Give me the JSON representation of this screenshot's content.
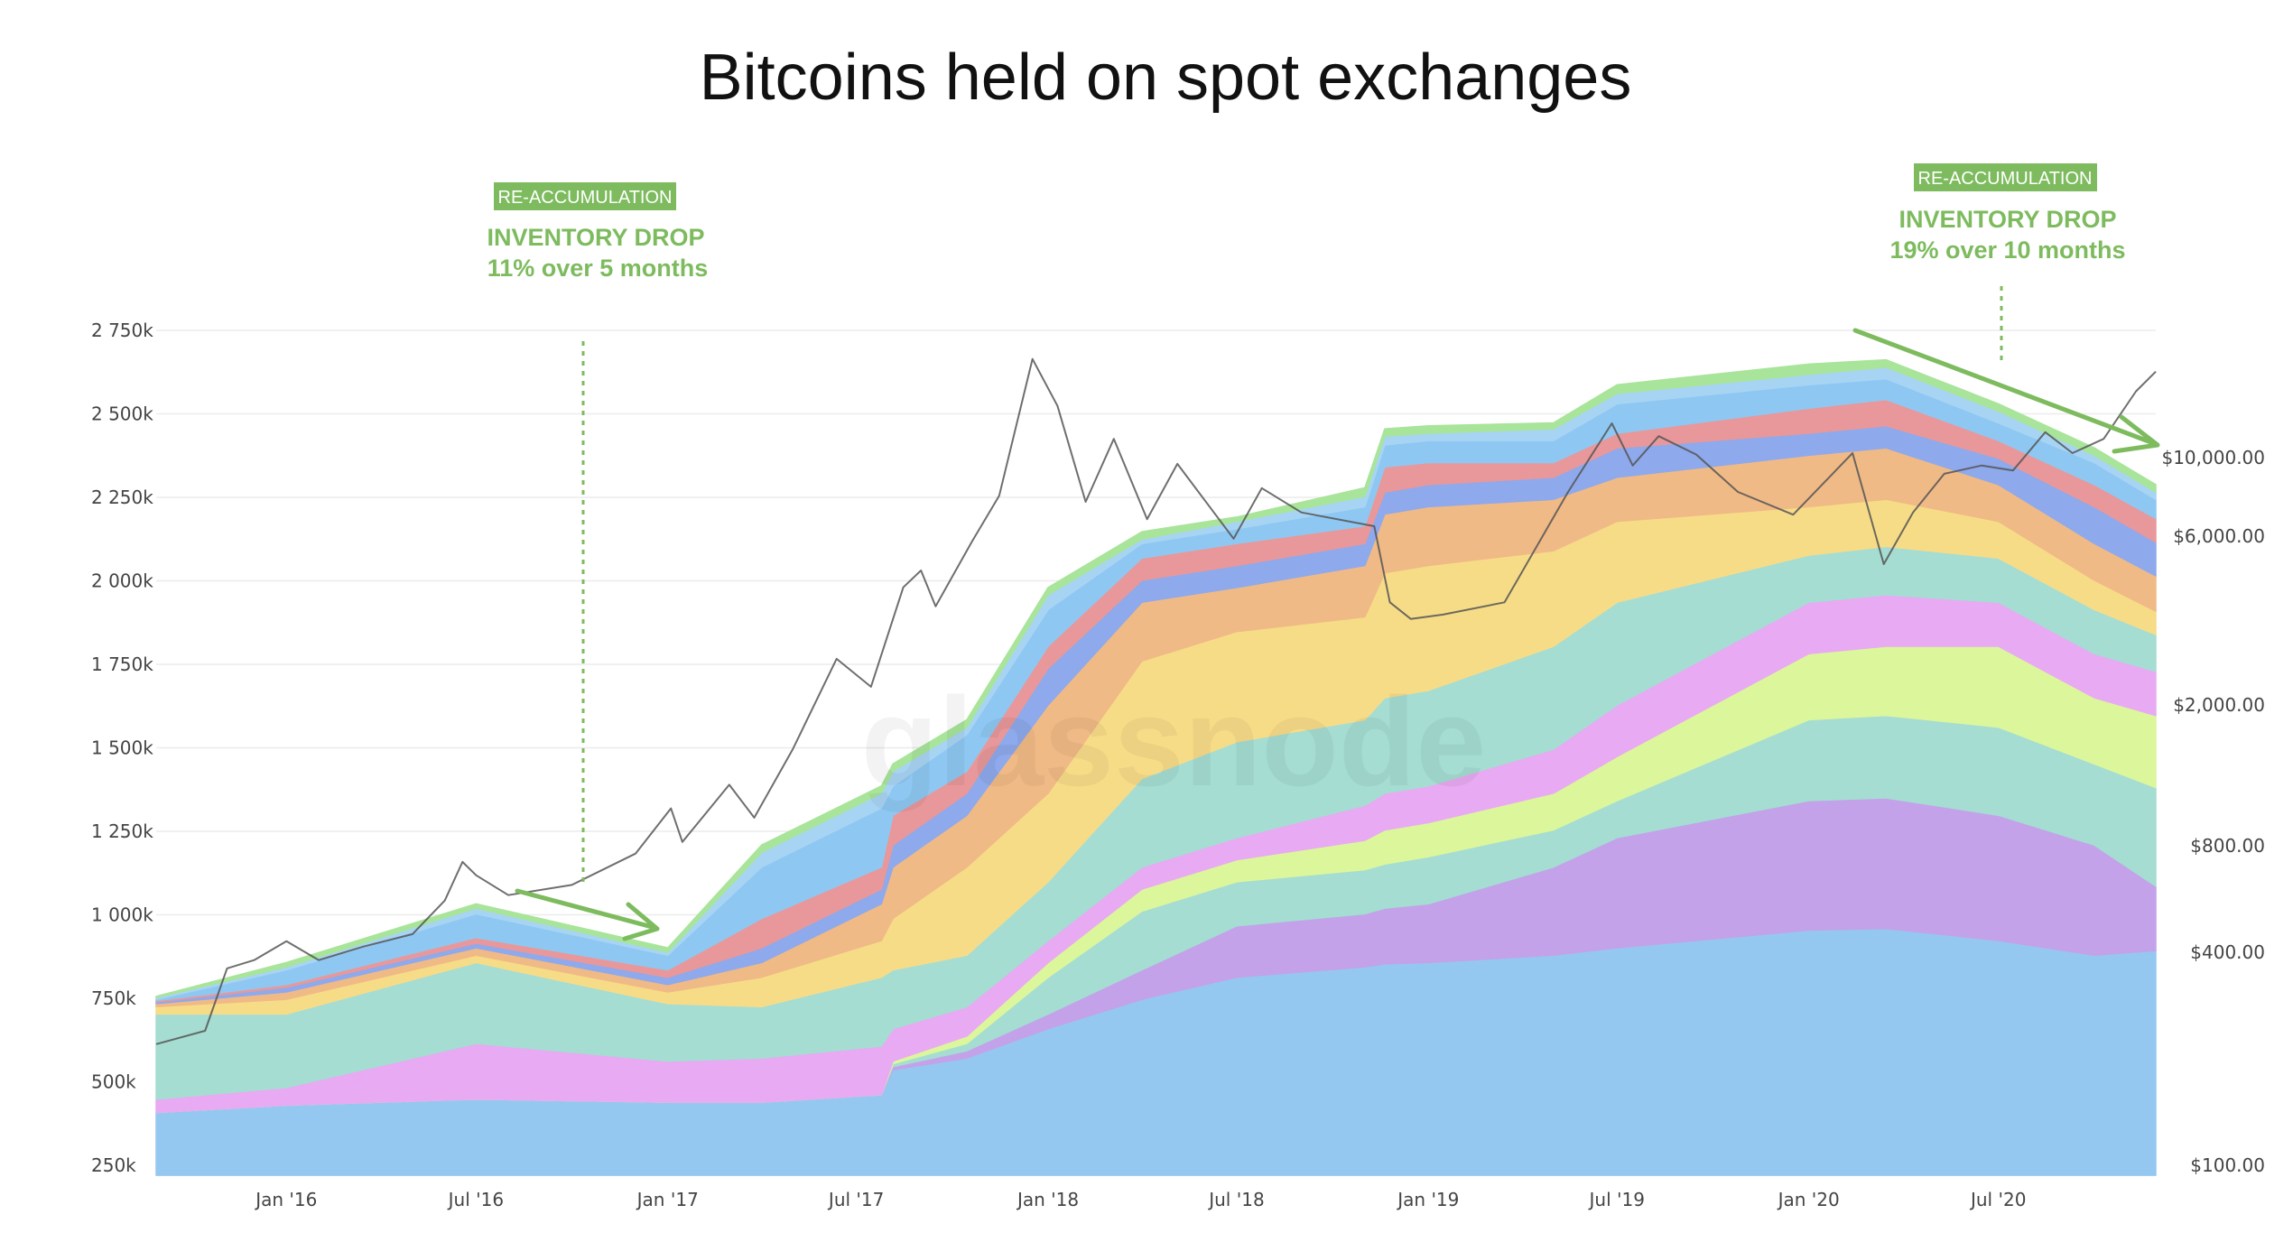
{
  "chart_data": {
    "type": "area",
    "stacked": true,
    "title": "Bitcoins held on spot exchanges",
    "watermark": "glassnode",
    "grid": true,
    "legend": "none",
    "x_ticks": [
      "Jan '16",
      "Jul '16",
      "Jan '17",
      "Jul '17",
      "Jan '18",
      "Jul '18",
      "Jan '19",
      "Jul '19",
      "Jan '20",
      "Jul '20"
    ],
    "x_tick_dates": [
      "2016-01-01",
      "2016-07-01",
      "2017-01-01",
      "2017-07-01",
      "2018-01-01",
      "2018-07-01",
      "2019-01-01",
      "2019-07-01",
      "2020-01-01",
      "2020-07-01"
    ],
    "xlim": [
      "2015-08-29",
      "2020-11-29"
    ],
    "y_left": {
      "unit": "thousand BTC",
      "ticks": [
        250,
        500,
        750,
        1000,
        1250,
        1500,
        1750,
        2000,
        2250,
        2500,
        2750
      ],
      "tick_labels": [
        "250k",
        "500k",
        "750k",
        "1 000k",
        "1 250k",
        "1 500k",
        "1 750k",
        "2 000k",
        "2 250k",
        "2 500k",
        "2 750k"
      ],
      "ylim": [
        220,
        2750
      ]
    },
    "y_right": {
      "scale": "log",
      "ticks": [
        100,
        400,
        800,
        2000,
        6000,
        10000
      ],
      "tick_labels": [
        "$100.00",
        "$400.00",
        "$800.00",
        "$2,000.00",
        "$6,000.00",
        "$10,000.00"
      ]
    },
    "dates": [
      "2015-08-29",
      "2016-01-01",
      "2016-07-01",
      "2017-01-01",
      "2017-04-01",
      "2017-07-25",
      "2017-08-05",
      "2017-10-15",
      "2018-01-01",
      "2018-04-01",
      "2018-07-01",
      "2018-11-01",
      "2018-11-20",
      "2019-01-01",
      "2019-05-01",
      "2019-07-01",
      "2020-01-01",
      "2020-03-15",
      "2020-07-01",
      "2020-10-01",
      "2020-11-29"
    ],
    "series": [
      {
        "color": "#95c8f0",
        "values": [
          408,
          430,
          448,
          439,
          439,
          461,
          536,
          571,
          659,
          747,
          813,
          844,
          853,
          857,
          879,
          901,
          954,
          959,
          923,
          879,
          893
        ]
      },
      {
        "color": "#c3a2ea",
        "values": [
          0,
          0,
          0,
          0,
          0,
          0,
          9,
          22,
          44,
          88,
          154,
          159,
          167,
          176,
          264,
          330,
          388,
          391,
          375,
          330,
          193
        ]
      },
      {
        "color": "#a5ddd2",
        "values": [
          0,
          0,
          0,
          0,
          0,
          0,
          9,
          22,
          110,
          176,
          132,
          132,
          132,
          141,
          111,
          111,
          242,
          247,
          264,
          243,
          295
        ]
      },
      {
        "color": "#dcf69c",
        "values": [
          0,
          0,
          0,
          0,
          0,
          0,
          8,
          22,
          44,
          66,
          66,
          88,
          102,
          102,
          110,
          132,
          198,
          207,
          242,
          198,
          216
        ]
      },
      {
        "color": "#e8aaf2",
        "values": [
          40,
          53,
          167,
          123,
          132,
          146,
          97,
          88,
          66,
          66,
          66,
          105,
          110,
          110,
          132,
          154,
          154,
          154,
          132,
          132,
          132
        ]
      },
      {
        "color": "#a5ddd2",
        "values": [
          255,
          220,
          242,
          172,
          154,
          206,
          176,
          154,
          176,
          265,
          287,
          256,
          286,
          286,
          308,
          308,
          141,
          145,
          132,
          132,
          110
        ]
      },
      {
        "color": "#f7dc88",
        "values": [
          22,
          44,
          22,
          35,
          88,
          110,
          154,
          264,
          265,
          352,
          330,
          308,
          374,
          374,
          286,
          242,
          145,
          141,
          110,
          88,
          70
        ]
      },
      {
        "color": "#f0ba86",
        "values": [
          9,
          22,
          22,
          22,
          44,
          110,
          154,
          155,
          264,
          176,
          132,
          154,
          176,
          176,
          154,
          132,
          154,
          154,
          110,
          110,
          106
        ]
      },
      {
        "color": "#8ea9ec",
        "values": [
          5,
          14,
          14,
          22,
          44,
          44,
          66,
          66,
          110,
          66,
          66,
          66,
          66,
          66,
          66,
          88,
          66,
          66,
          79,
          110,
          101
        ]
      },
      {
        "color": "#e8989a",
        "values": [
          4,
          8,
          17,
          22,
          88,
          66,
          89,
          66,
          66,
          66,
          66,
          53,
          75,
          66,
          44,
          44,
          75,
          79,
          53,
          66,
          71
        ]
      },
      {
        "color": "#8ec8f2",
        "values": [
          4,
          44,
          71,
          44,
          154,
          177,
          88,
          110,
          110,
          44,
          44,
          57,
          66,
          66,
          66,
          88,
          70,
          62,
          53,
          66,
          57
        ]
      },
      {
        "color": "#a8d4f4",
        "values": [
          5,
          9,
          17,
          9,
          44,
          44,
          44,
          22,
          44,
          13,
          22,
          31,
          26,
          22,
          35,
          31,
          31,
          35,
          35,
          22,
          22
        ]
      },
      {
        "color": "#a8e49a",
        "values": [
          4,
          13,
          13,
          13,
          22,
          22,
          22,
          22,
          22,
          22,
          13,
          26,
          22,
          22,
          18,
          26,
          31,
          22,
          22,
          22,
          22
        ]
      }
    ],
    "price_series": {
      "color": "#555555",
      "dates": [
        "2015-08-29",
        "2015-10-15",
        "2015-11-05",
        "2015-12-01",
        "2016-01-01",
        "2016-02-01",
        "2016-03-15",
        "2016-05-01",
        "2016-06-01",
        "2016-06-18",
        "2016-07-01",
        "2016-08-01",
        "2016-10-01",
        "2016-12-01",
        "2017-01-04",
        "2017-01-15",
        "2017-03-01",
        "2017-03-25",
        "2017-05-01",
        "2017-06-12",
        "2017-07-15",
        "2017-08-15",
        "2017-09-01",
        "2017-09-15",
        "2017-10-20",
        "2017-11-15",
        "2017-12-17",
        "2018-01-10",
        "2018-02-06",
        "2018-03-05",
        "2018-04-06",
        "2018-05-05",
        "2018-06-28",
        "2018-07-25",
        "2018-09-01",
        "2018-11-10",
        "2018-11-25",
        "2018-12-15",
        "2019-01-15",
        "2019-03-15",
        "2019-05-15",
        "2019-06-26",
        "2019-07-16",
        "2019-08-10",
        "2019-09-15",
        "2019-10-25",
        "2019-12-17",
        "2020-02-12",
        "2020-03-13",
        "2020-04-10",
        "2020-05-10",
        "2020-06-15",
        "2020-07-15",
        "2020-08-15",
        "2020-09-10",
        "2020-10-10",
        "2020-11-10",
        "2020-11-29"
      ],
      "values": [
        220,
        240,
        360,
        380,
        430,
        380,
        415,
        450,
        560,
        720,
        660,
        580,
        620,
        760,
        1020,
        820,
        1190,
        960,
        1500,
        2700,
        2250,
        4300,
        4800,
        3800,
        5800,
        7800,
        19000,
        14000,
        7500,
        11300,
        6700,
        9600,
        5900,
        8200,
        7000,
        6400,
        3900,
        3500,
        3600,
        3900,
        8000,
        12500,
        9500,
        11500,
        10200,
        8000,
        6900,
        10300,
        5000,
        7000,
        9000,
        9500,
        9200,
        11800,
        10300,
        11300,
        15400,
        17500
      ]
    },
    "annotations": [
      {
        "badge": "RE-ACCUMULATION",
        "headline": "INVENTORY DROP",
        "detail": "11% over 5 months",
        "color": "#7dbb5e"
      },
      {
        "badge": "RE-ACCUMULATION",
        "headline": "INVENTORY DROP",
        "detail": "19% over 10 months",
        "color": "#7dbb5e"
      }
    ]
  }
}
